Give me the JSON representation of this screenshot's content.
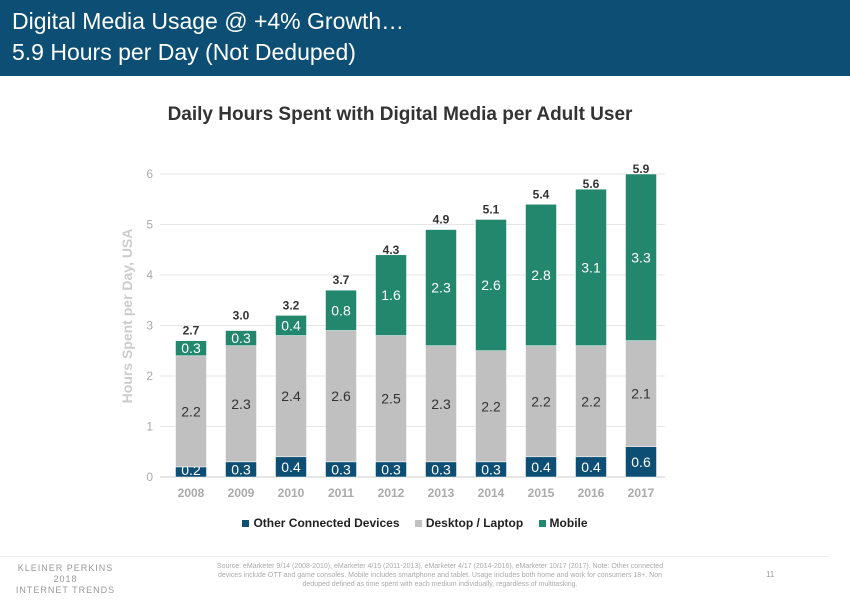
{
  "header": {
    "title_line1": "Digital Media Usage @ +4% Growth…",
    "title_line2": "5.9 Hours per Day (Not Deduped)"
  },
  "chart_data": {
    "type": "bar",
    "stacked": true,
    "title": "Daily Hours Spent with Digital Media per Adult User",
    "ylabel": "Hours Spent per Day, USA",
    "xlabel": "",
    "ylim": [
      0,
      6
    ],
    "yticks": [
      "0",
      "1",
      "2",
      "3",
      "4",
      "5",
      "6"
    ],
    "grid": true,
    "legend": "bottom",
    "categories": [
      "2008",
      "2009",
      "2010",
      "2011",
      "2012",
      "2013",
      "2014",
      "2015",
      "2016",
      "2017"
    ],
    "series": [
      {
        "name": "Other Connected Devices",
        "color": "#0d4f74",
        "values": [
          0.2,
          0.3,
          0.4,
          0.3,
          0.3,
          0.3,
          0.3,
          0.4,
          0.4,
          0.6
        ],
        "labels": [
          "0.2",
          "0.3",
          "0.4",
          "0.3",
          "0.3",
          "0.3",
          "0.3",
          "0.4",
          "0.4",
          "0.6"
        ]
      },
      {
        "name": "Desktop / Laptop",
        "color": "#c0c0c0",
        "values": [
          2.2,
          2.3,
          2.4,
          2.6,
          2.5,
          2.3,
          2.2,
          2.2,
          2.2,
          2.1
        ],
        "labels": [
          "2.2",
          "2.3",
          "2.4",
          "2.6",
          "2.5",
          "2.3",
          "2.2",
          "2.2",
          "2.2",
          "2.1"
        ]
      },
      {
        "name": "Mobile",
        "color": "#23876e",
        "values": [
          0.3,
          0.3,
          0.4,
          0.8,
          1.6,
          2.3,
          2.6,
          2.8,
          3.1,
          3.3
        ],
        "labels": [
          "0.3",
          "0.3",
          "0.4",
          "0.8",
          "1.6",
          "2.3",
          "2.6",
          "2.8",
          "3.1",
          "3.3"
        ]
      }
    ],
    "totals": [
      "2.7",
      "3.0",
      "3.2",
      "3.7",
      "4.3",
      "4.9",
      "5.1",
      "5.4",
      "5.6",
      "5.9"
    ],
    "total_values": [
      2.7,
      3.0,
      3.2,
      3.7,
      4.3,
      4.9,
      5.1,
      5.4,
      5.6,
      5.9
    ]
  },
  "footer": {
    "logo_line1": "KLEINER PERKINS",
    "logo_line2": "2018",
    "logo_line3": "INTERNET TRENDS",
    "source": "Source: eMarketer 9/14 (2008-2010), eMarketer 4/15 (2011-2013), eMarketer 4/17 (2014-2016), eMarketer 10/17 (2017). Note: Other connected devices include OTT and game consoles. Mobile includes smartphone and tablet. Usage includes both home and work for consumers 18+. Non deduped defined as time spent with each medium individually, regardless of multitasking.",
    "page": "11"
  }
}
